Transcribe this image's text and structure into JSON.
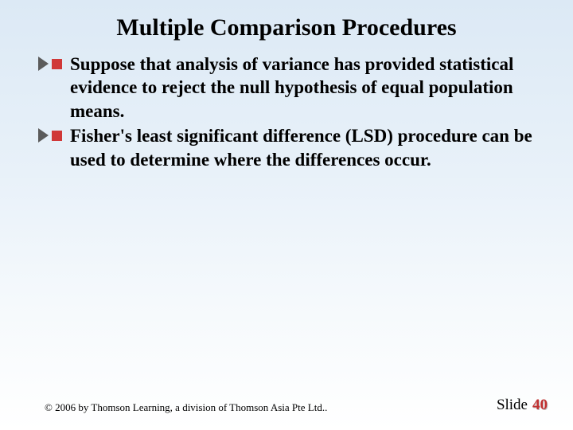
{
  "title": {
    "text": "Multiple Comparison Procedures",
    "fontsize": 30,
    "color": "#000000"
  },
  "bullets": [
    {
      "text": "Suppose that analysis of variance has provided statistical evidence to reject the null hypothesis of equal population means.",
      "arrow_color": "#5b5b5b",
      "square_color": "#d03838"
    },
    {
      "text": "Fisher's least significant difference (LSD) procedure can be used to determine where the differences occur.",
      "arrow_color": "#5b5b5b",
      "square_color": "#d03838"
    }
  ],
  "body_fontsize": 23,
  "body_color": "#000000",
  "footer": {
    "copyright": "© 2006 by Thomson Learning, a division of Thomson Asia Pte Ltd..",
    "copyright_fontsize": 13,
    "slide_word": "Slide",
    "slide_number": "40",
    "slide_fontsize": 19
  },
  "background": {
    "gradient_top": "#dce9f5",
    "gradient_bottom": "#ffffff"
  }
}
